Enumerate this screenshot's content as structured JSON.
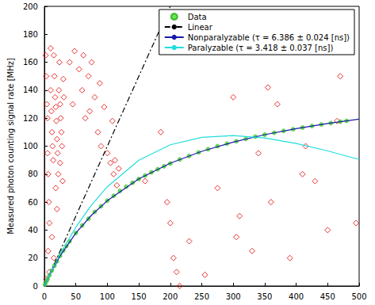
{
  "chart_data": {
    "type": "line",
    "ylabel": "Measured photon counting signal rate [MHz]",
    "xlim": [
      0,
      500
    ],
    "xticks": [
      0,
      50,
      100,
      150,
      200,
      250,
      300,
      350,
      400,
      450,
      500
    ],
    "ylim": [
      0,
      200
    ],
    "yticks": [
      0,
      20,
      40,
      60,
      80,
      100,
      120,
      140,
      160,
      180,
      200
    ],
    "grid": false,
    "legend": "upper-right",
    "series": [
      {
        "type": "scatter",
        "color": "#e00000",
        "marker": "diamond",
        "x": [
          2,
          3,
          4,
          5,
          5,
          6,
          7,
          8,
          10,
          10,
          11,
          12,
          13,
          14,
          15,
          16,
          17,
          18,
          19,
          20,
          21,
          22,
          23,
          24,
          25,
          26,
          27,
          28,
          30,
          31,
          12,
          15,
          8,
          20,
          3,
          6,
          18,
          25,
          29,
          40,
          45,
          48,
          55,
          60,
          62,
          65,
          70,
          72,
          75,
          80,
          85,
          88,
          90,
          95,
          100,
          105,
          108,
          112,
          118,
          110,
          115,
          160,
          185,
          195,
          200,
          205,
          210,
          215,
          230,
          255,
          275,
          300,
          305,
          310,
          330,
          340,
          355,
          360,
          370,
          390,
          410,
          415,
          430,
          450,
          465,
          470,
          495
        ],
        "values": [
          165,
          150,
          130,
          120,
          95,
          80,
          60,
          45,
          170,
          140,
          125,
          110,
          100,
          90,
          165,
          150,
          135,
          128,
          118,
          105,
          95,
          80,
          140,
          160,
          130,
          120,
          110,
          100,
          148,
          135,
          35,
          20,
          10,
          55,
          5,
          25,
          70,
          88,
          75,
          160,
          130,
          168,
          155,
          140,
          165,
          120,
          150,
          125,
          160,
          135,
          110,
          145,
          100,
          128,
          95,
          88,
          118,
          90,
          84,
          80,
          72,
          75,
          110,
          60,
          45,
          20,
          10,
          0,
          32,
          8,
          70,
          135,
          35,
          50,
          25,
          95,
          142,
          60,
          130,
          20,
          80,
          100,
          75,
          40,
          118,
          150,
          45
        ]
      },
      {
        "name": "Data",
        "type": "scatter",
        "color": "#44dd22",
        "marker": "circle",
        "x": [
          1,
          3,
          5,
          8,
          12,
          16,
          20,
          25,
          30,
          35,
          40,
          50,
          60,
          70,
          80,
          90,
          100,
          110,
          120,
          130,
          140,
          150,
          160,
          170,
          180,
          190,
          200,
          215,
          230,
          245,
          260,
          275,
          290,
          305,
          320,
          335,
          350,
          365,
          380,
          395,
          410,
          425,
          440,
          455,
          470,
          480
        ],
        "values": [
          1,
          3,
          4.8,
          7.6,
          11.1,
          14.6,
          17.7,
          21.6,
          25.3,
          28.6,
          31.9,
          37.9,
          43.3,
          48.1,
          53,
          57,
          61,
          64.5,
          68,
          71,
          73.8,
          76.5,
          79,
          81.3,
          83.5,
          85.6,
          87.6,
          90.5,
          93,
          95.5,
          97.8,
          100,
          101.8,
          103.5,
          105.2,
          106.8,
          108.2,
          109.6,
          110.9,
          112.1,
          113.3,
          114.4,
          115.5,
          116.5,
          117.5,
          118.1
        ]
      },
      {
        "name": "Linear",
        "type": "line",
        "color": "#000000",
        "line_style": "dashdot",
        "x": [
          0,
          200
        ],
        "values": [
          0,
          200
        ]
      },
      {
        "name": "Nonparalyzable (τ = 6.386 ± 0.024 [ns])",
        "type": "line",
        "color": "#1a1aaa",
        "line_style": "solid",
        "x": [
          0,
          10,
          25,
          50,
          75,
          100,
          150,
          200,
          250,
          300,
          350,
          400,
          450,
          500
        ],
        "values": [
          0,
          9.4,
          21.6,
          37.9,
          50.7,
          61.0,
          76.6,
          87.8,
          96.3,
          102.9,
          108.2,
          112.5,
          116.2,
          119.3
        ]
      },
      {
        "name": "Paralyzable (τ = 3.418 ± 0.037 [ns])",
        "type": "line",
        "color": "#22dddd",
        "line_style": "solid",
        "x": [
          0,
          10,
          25,
          50,
          75,
          100,
          150,
          200,
          250,
          300,
          350,
          400,
          450,
          500
        ],
        "values": [
          0,
          9.66,
          22.95,
          42.1,
          58.0,
          71.0,
          89.9,
          101.0,
          106.3,
          107.6,
          105.9,
          101.9,
          96.6,
          90.5
        ]
      }
    ]
  }
}
